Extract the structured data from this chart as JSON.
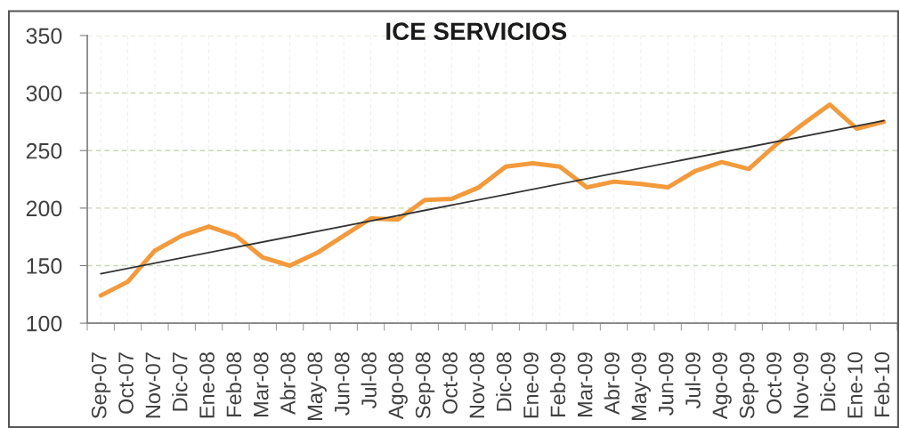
{
  "chart_data": {
    "type": "line",
    "title": "ICE SERVICIOS",
    "categories": [
      "Sep-07",
      "Oct-07",
      "Nov-07",
      "Dic-07",
      "Ene-08",
      "Feb-08",
      "Mar-08",
      "Abr-08",
      "May-08",
      "Jun-08",
      "Jul-08",
      "Ago-08",
      "Sep-08",
      "Oct-08",
      "Nov-08",
      "Dic-08",
      "Ene-09",
      "Feb-09",
      "Mar-09",
      "Abr-09",
      "May-09",
      "Jun-09",
      "Jul-09",
      "Ago-09",
      "Sep-09",
      "Oct-09",
      "Nov-09",
      "Dic-09",
      "Ene-10",
      "Feb-10"
    ],
    "series": [
      {
        "color": "#f39a3c",
        "values": [
          124,
          136,
          163,
          176,
          184,
          176,
          157,
          150,
          161,
          176,
          191,
          190,
          207,
          208,
          218,
          236,
          239,
          236,
          218,
          223,
          221,
          218,
          232,
          240,
          234,
          255,
          273,
          290,
          269,
          275
        ]
      },
      {
        "type": "line",
        "color": "#333333",
        "x": [
          "Sep-07",
          "Feb-10"
        ],
        "values": [
          143,
          276
        ]
      }
    ],
    "ylim": [
      100,
      350
    ],
    "yticks": [
      100,
      150,
      200,
      250,
      300,
      350
    ],
    "grid": true
  }
}
